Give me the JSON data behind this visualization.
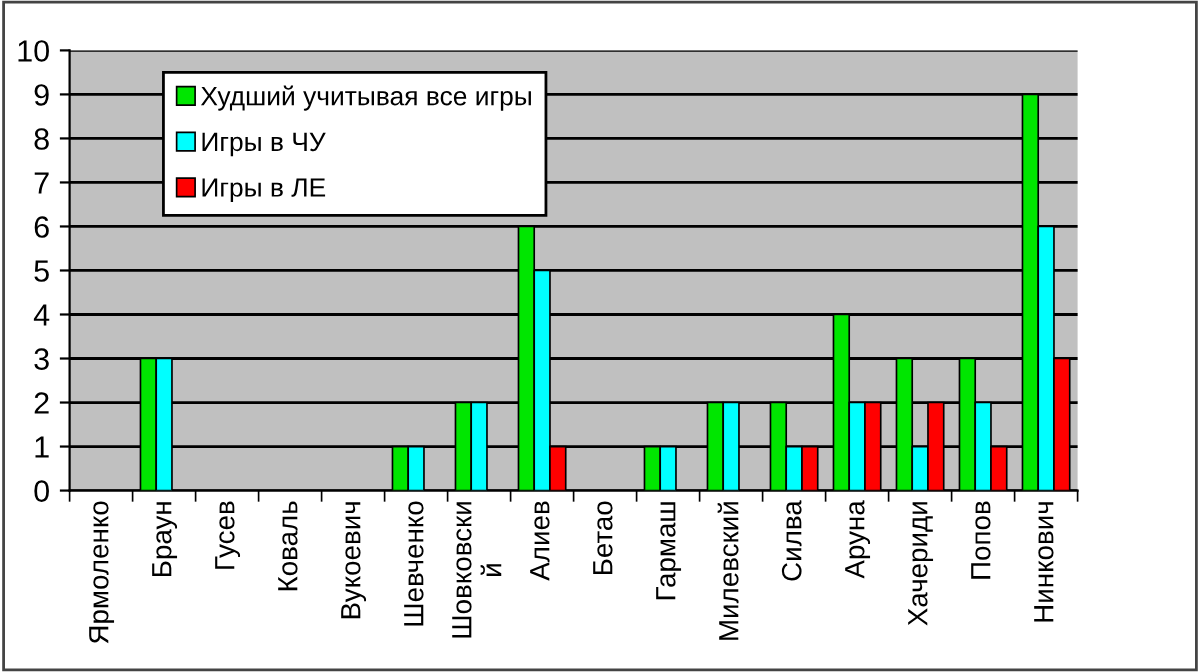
{
  "chart_data": {
    "type": "bar",
    "categories": [
      "Ярмоленко",
      "Браун",
      "Гусев",
      "Коваль",
      "Вукоевич",
      "Шевченко",
      "Шовковски\nй",
      "Алиев",
      "Бетао",
      "Гармаш",
      "Милевский",
      "Силва",
      "Аруна",
      "Хачериди",
      "Попов",
      "Нинкович"
    ],
    "series": [
      {
        "name": "Худший учитывая все игры",
        "color": "#00e600",
        "values": [
          null,
          3,
          null,
          null,
          null,
          1,
          2,
          6,
          null,
          1,
          2,
          2,
          4,
          3,
          3,
          9
        ]
      },
      {
        "name": "Игры в ЧУ",
        "color": "#00ffff",
        "values": [
          null,
          3,
          null,
          null,
          null,
          1,
          2,
          5,
          null,
          1,
          2,
          1,
          2,
          1,
          2,
          6
        ]
      },
      {
        "name": "Игры в ЛЕ",
        "color": "#ff0000",
        "values": [
          null,
          null,
          null,
          null,
          null,
          null,
          null,
          1,
          null,
          null,
          null,
          1,
          2,
          2,
          1,
          3
        ]
      }
    ],
    "ylim": [
      0,
      10
    ],
    "yticks": [
      0,
      1,
      2,
      3,
      4,
      5,
      6,
      7,
      8,
      9,
      10
    ],
    "grid": "y",
    "legend": "top left"
  }
}
